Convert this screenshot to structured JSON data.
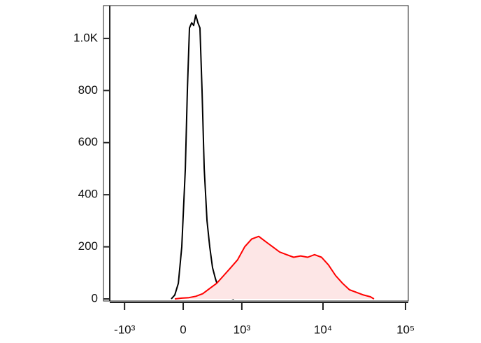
{
  "chart_data": {
    "type": "histogram-overlay",
    "x_scale": "biexponential",
    "xlim": [
      -1850,
      108000
    ],
    "ylim": [
      -8,
      1126
    ],
    "xticks": [
      {
        "value": -1000,
        "label": "-10³"
      },
      0,
      {
        "value": 1000,
        "label": "10³"
      },
      {
        "value": 10000,
        "label": "10⁴"
      },
      {
        "value": 100000,
        "label": "10⁵"
      }
    ],
    "yticks": [
      0,
      200,
      400,
      600,
      800,
      {
        "value": 1000,
        "label": "1.0K"
      }
    ],
    "series": [
      {
        "name": null,
        "color": "#000000",
        "filled": false,
        "x": [
          -137,
          -96,
          -55,
          -16,
          24,
          47,
          71,
          96,
          120,
          145,
          171,
          196,
          223,
          251,
          289,
          328,
          370,
          413,
          460,
          535,
          632,
          785
        ],
        "values": [
          0,
          15,
          60,
          200,
          500,
          800,
          1040,
          1060,
          1050,
          1090,
          1060,
          1040,
          800,
          500,
          300,
          200,
          120,
          80,
          45,
          20,
          8,
          0
        ]
      },
      {
        "name": null,
        "color": "#ff0000",
        "fill": "#fde6e6",
        "filled": true,
        "x": [
          -96,
          -16,
          64,
          145,
          232,
          328,
          437,
          563,
          708,
          878,
          1089,
          1338,
          1641,
          2002,
          2438,
          2970,
          3616,
          4400,
          5354,
          6520,
          7900,
          9600,
          11660,
          14180,
          17230,
          20940,
          25460,
          30950,
          37620,
          41470
        ],
        "values": [
          0,
          3,
          5,
          10,
          20,
          40,
          60,
          90,
          120,
          150,
          200,
          230,
          240,
          220,
          200,
          180,
          170,
          160,
          165,
          160,
          170,
          160,
          130,
          90,
          60,
          35,
          25,
          15,
          8,
          0
        ]
      }
    ]
  }
}
